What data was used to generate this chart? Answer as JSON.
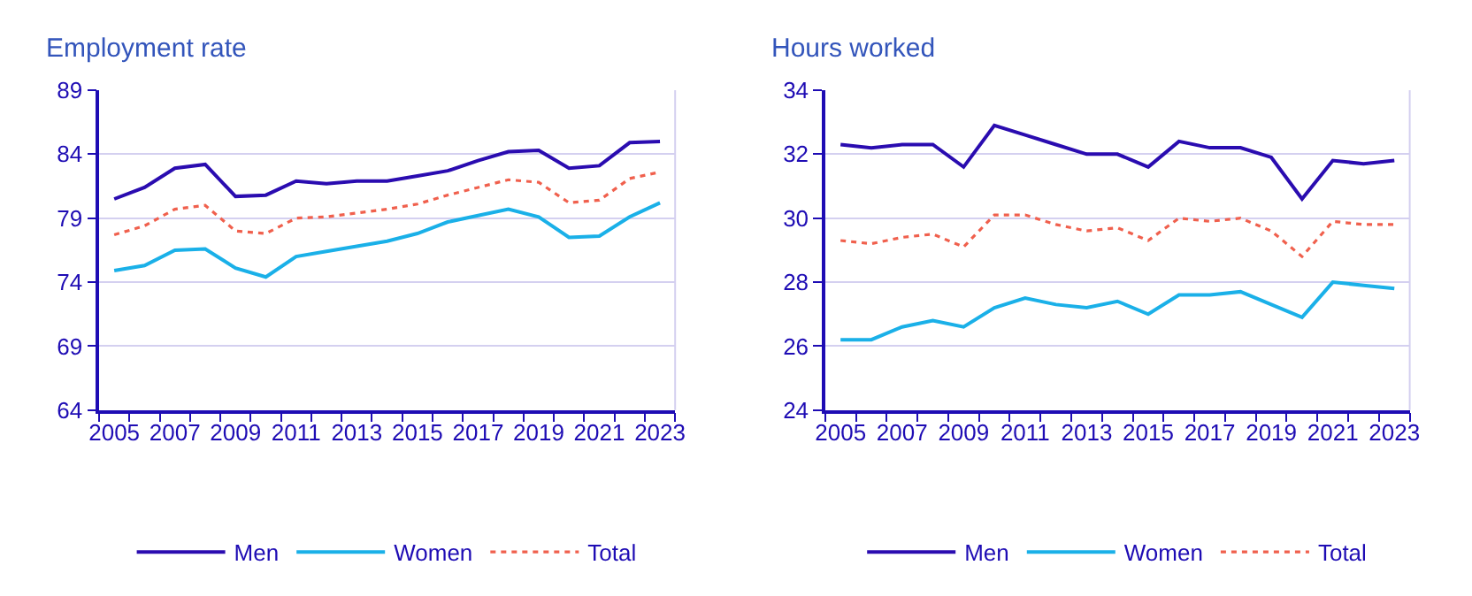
{
  "chart_data": [
    {
      "type": "line",
      "title": "Employment rate",
      "categories": [
        "2005",
        null,
        "2007",
        null,
        "2009",
        null,
        "2011",
        null,
        "2013",
        null,
        "2015",
        null,
        "2017",
        null,
        "2019",
        null,
        "2021",
        null,
        "2023"
      ],
      "series": [
        {
          "name": "Men",
          "color": "#2a0cb0",
          "line_style": "solid",
          "values": [
            80.5,
            81.4,
            82.9,
            83.2,
            80.7,
            80.8,
            81.9,
            81.7,
            81.9,
            81.9,
            82.3,
            82.7,
            83.5,
            84.2,
            84.3,
            82.9,
            83.1,
            84.9,
            85.0
          ]
        },
        {
          "name": "Women",
          "color": "#1ab0e8",
          "line_style": "solid",
          "values": [
            74.9,
            75.3,
            76.5,
            76.6,
            75.1,
            74.4,
            76.0,
            76.4,
            76.8,
            77.2,
            77.8,
            78.7,
            79.2,
            79.7,
            79.1,
            77.5,
            77.6,
            79.1,
            80.2
          ]
        },
        {
          "name": "Total",
          "color": "#f0604d",
          "line_style": "dotted",
          "values": [
            77.7,
            78.4,
            79.7,
            80.0,
            78.0,
            77.8,
            79.0,
            79.1,
            79.4,
            79.7,
            80.1,
            80.8,
            81.4,
            82.0,
            81.8,
            80.2,
            80.4,
            82.1,
            82.6
          ]
        }
      ],
      "ylim": [
        64,
        89
      ],
      "yticks": [
        64,
        69,
        74,
        79,
        84,
        89
      ],
      "grid": "y",
      "legend": "bottom",
      "marker": "none"
    },
    {
      "type": "line",
      "title": "Hours worked",
      "categories": [
        "2005",
        null,
        "2007",
        null,
        "2009",
        null,
        "2011",
        null,
        "2013",
        null,
        "2015",
        null,
        "2017",
        null,
        "2019",
        null,
        "2021",
        null,
        "2023"
      ],
      "series": [
        {
          "name": "Men",
          "color": "#2a0cb0",
          "line_style": "solid",
          "values": [
            32.3,
            32.2,
            32.3,
            32.3,
            31.6,
            32.9,
            32.6,
            32.3,
            32.0,
            32.0,
            31.6,
            32.4,
            32.2,
            32.2,
            31.9,
            30.6,
            31.8,
            31.7,
            31.8
          ]
        },
        {
          "name": "Women",
          "color": "#1ab0e8",
          "line_style": "solid",
          "values": [
            26.2,
            26.2,
            26.6,
            26.8,
            26.6,
            27.2,
            27.5,
            27.3,
            27.2,
            27.4,
            27.0,
            27.6,
            27.6,
            27.7,
            27.3,
            26.9,
            28.0,
            27.9,
            27.8
          ]
        },
        {
          "name": "Total",
          "color": "#f0604d",
          "line_style": "dotted",
          "values": [
            29.3,
            29.2,
            29.4,
            29.5,
            29.1,
            30.1,
            30.1,
            29.8,
            29.6,
            29.7,
            29.3,
            30.0,
            29.9,
            30.0,
            29.6,
            28.8,
            29.9,
            29.8,
            29.8
          ]
        }
      ],
      "ylim": [
        24,
        34
      ],
      "yticks": [
        24,
        26,
        28,
        30,
        32,
        34
      ],
      "grid": "y",
      "legend": "bottom",
      "marker": "none"
    }
  ]
}
